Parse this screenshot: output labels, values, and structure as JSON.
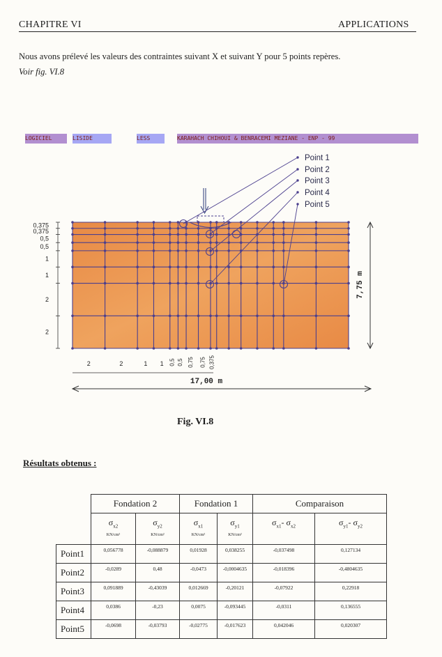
{
  "header": {
    "chapter": "CHAPITRE VI",
    "section": "APPLICATIONS"
  },
  "intro": "Nous avons prélevé les valeurs des contraintes suivant X et suivant Y pour 5 points repères.",
  "voir": "Voir fig. VI.8",
  "software_bar": [
    "LOGICIEL",
    "LISIDE",
    "LESS",
    "KARAHACH CHIHOUI & BENRACEMI MEZIANE - ENP - 99"
  ],
  "figure": {
    "points": [
      "Point 1",
      "Point 2",
      "Point 3",
      "Point 4",
      "Point 5"
    ],
    "left_dims": [
      "0,375",
      "0,375",
      "0,5",
      "0,5",
      "1",
      "1",
      "2",
      "2"
    ],
    "bottom_dims": [
      "2",
      "2",
      "1",
      "1",
      "0,5",
      "0,5",
      "0,75",
      "0,75",
      "0,375"
    ],
    "width": "17,00 m",
    "height": "7,75 m",
    "caption": "Fig. VI.8",
    "colors": {
      "soil": "#e88a45",
      "soil_light": "#efa35e",
      "mesh": "#4b3f8e",
      "arrow": "#2c3a78"
    }
  },
  "results_title": "Résultats obtenus :",
  "table": {
    "groups": [
      "Fondation 2",
      "Fondation 1",
      "Comparaison"
    ],
    "cols": [
      {
        "s": "σ",
        "sub": "x2",
        "unit": "KN/cm²"
      },
      {
        "s": "σ",
        "sub": "y2",
        "unit": "KN/cm²"
      },
      {
        "s": "σ",
        "sub": "x1",
        "unit": "KN/cm²"
      },
      {
        "s": "σ",
        "sub": "y1",
        "unit": "KN/cm²"
      },
      {
        "s": "σ",
        "sub": "x1",
        "s2": "- σ",
        "sub2": "x2"
      },
      {
        "s": "σ",
        "sub": "y1",
        "s2": "- σ",
        "sub2": "y2"
      }
    ],
    "rows": [
      {
        "label": "Point1",
        "values": [
          "0,056778",
          "-0,088879",
          "0,01928",
          "0,038255",
          "-0,037498",
          "0,127134"
        ]
      },
      {
        "label": "Point2",
        "values": [
          "-0,0289",
          "0,48",
          "-0,0473",
          "-0,0004635",
          "-0,018396",
          "-0,4804635"
        ]
      },
      {
        "label": "Point3",
        "values": [
          "0,091889",
          "-0,43039",
          "0,012669",
          "-0,20121",
          "-0,07922",
          "0,22918"
        ]
      },
      {
        "label": "Point4",
        "values": [
          "0,0386",
          "-0,23",
          "0,0075",
          "-0,093445",
          "-0,0311",
          "0,136555"
        ]
      },
      {
        "label": "Point5",
        "values": [
          "-0,0698",
          "-0,03793",
          "-0,02775",
          "-0,017623",
          "0,042046",
          "0,020307"
        ]
      }
    ]
  }
}
